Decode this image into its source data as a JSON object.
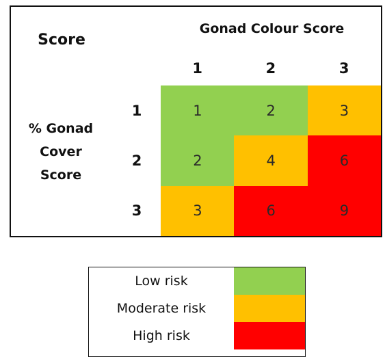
{
  "header": {
    "title": "Score",
    "column_title": "Gonad Colour Score",
    "row_title": "% Gonad Cover Score"
  },
  "columns": [
    "1",
    "2",
    "3"
  ],
  "rows": [
    "1",
    "2",
    "3"
  ],
  "cells": [
    [
      {
        "value": "1",
        "color": "#92d050"
      },
      {
        "value": "2",
        "color": "#92d050"
      },
      {
        "value": "3",
        "color": "#ffc000"
      }
    ],
    [
      {
        "value": "2",
        "color": "#92d050"
      },
      {
        "value": "4",
        "color": "#ffc000"
      },
      {
        "value": "6",
        "color": "#ff0000"
      }
    ],
    [
      {
        "value": "3",
        "color": "#ffc000"
      },
      {
        "value": "6",
        "color": "#ff0000"
      },
      {
        "value": "9",
        "color": "#ff0000"
      }
    ]
  ],
  "legend": [
    {
      "label": "Low risk",
      "color": "#92d050"
    },
    {
      "label": "Moderate risk",
      "color": "#ffc000"
    },
    {
      "label": "High risk",
      "color": "#ff0000"
    }
  ]
}
